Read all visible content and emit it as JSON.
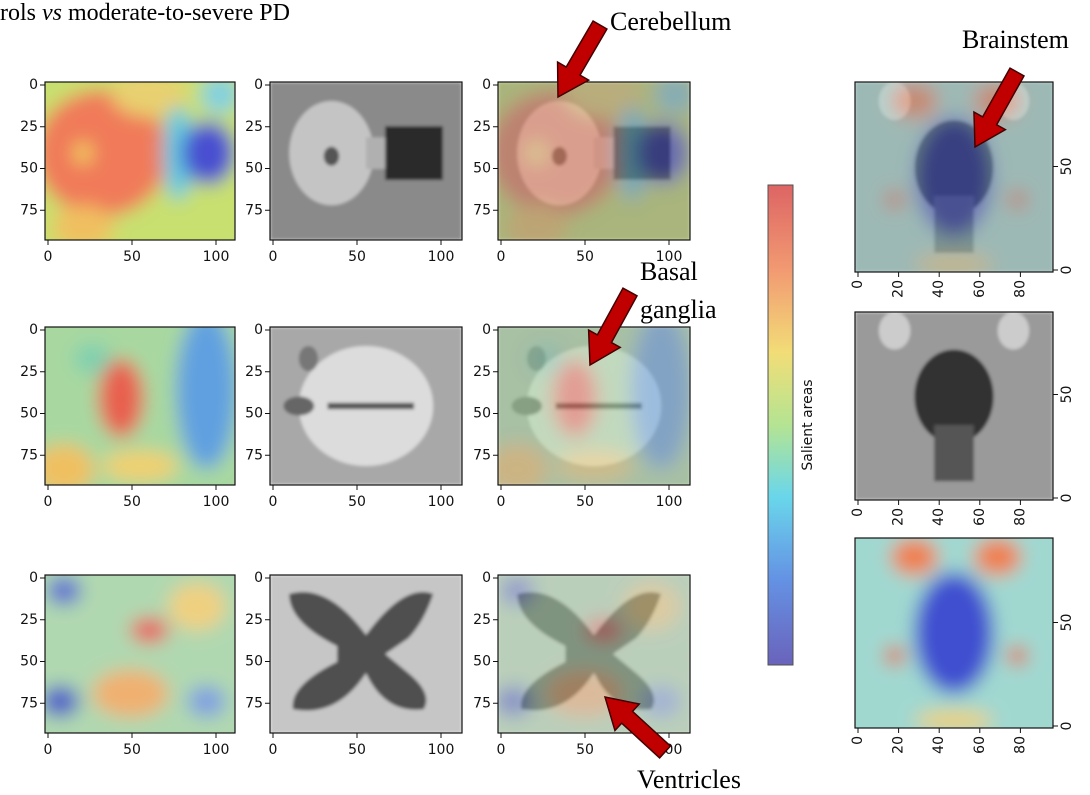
{
  "title": {
    "pre": "rols ",
    "em": "vs",
    "post": " moderate-to-severe PD"
  },
  "annotations": {
    "cerebellum": "Cerebellum",
    "basal": [
      "Basal",
      "ganglia"
    ],
    "ventricles": "Ventricles",
    "brainstem": "Brainstem"
  },
  "colorbar": {
    "label": "Salient areas"
  },
  "axial_panels": {
    "xticks": [
      0,
      50,
      100
    ],
    "yticks": [
      0,
      25,
      50,
      75
    ]
  },
  "coronal_panels": {
    "xticks": [
      0,
      20,
      40,
      60,
      80
    ],
    "yticks": [
      0,
      50
    ]
  }
}
